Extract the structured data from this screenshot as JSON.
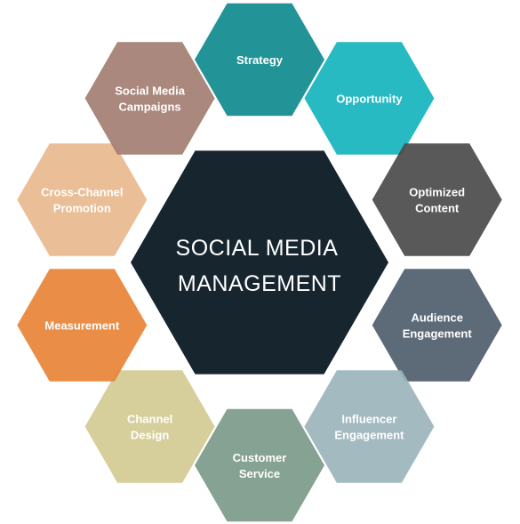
{
  "center": {
    "lines": [
      "SOCIAL MEDIA",
      "MANAGEMENT"
    ],
    "color": "#17252f"
  },
  "segments": [
    {
      "name": "strategy",
      "lines": [
        "Strategy"
      ],
      "color": "#0f8b8f"
    },
    {
      "name": "opportunity",
      "lines": [
        "Opportunity"
      ],
      "color": "#15b4bd"
    },
    {
      "name": "optimized-content",
      "lines": [
        "Optimized",
        "Content"
      ],
      "color": "#4b4b4b"
    },
    {
      "name": "audience-engagement",
      "lines": [
        "Audience",
        "Engagement"
      ],
      "color": "#4f5d6d"
    },
    {
      "name": "influencer-engagement",
      "lines": [
        "Influencer",
        "Engagement"
      ],
      "color": "#9cb4bc"
    },
    {
      "name": "customer-service",
      "lines": [
        "Customer",
        "Service"
      ],
      "color": "#7c9a89"
    },
    {
      "name": "channel-design",
      "lines": [
        "Channel",
        "Design"
      ],
      "color": "#d3ca92"
    },
    {
      "name": "measurement",
      "lines": [
        "Measurement"
      ],
      "color": "#e88437"
    },
    {
      "name": "cross-channel-promotion",
      "lines": [
        "Cross-Channel",
        "Promotion"
      ],
      "color": "#e8b98e"
    },
    {
      "name": "social-media-campaigns",
      "lines": [
        "Social Media",
        "Campaigns"
      ],
      "color": "#a37e72"
    }
  ]
}
